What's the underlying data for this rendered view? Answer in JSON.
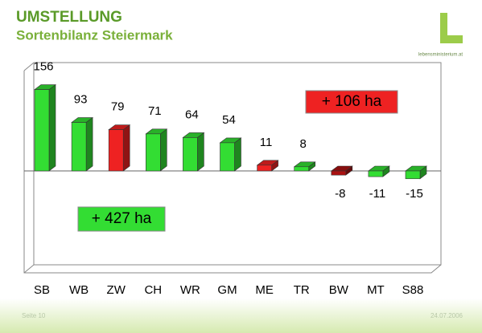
{
  "header": {
    "title": "UMSTELLUNG",
    "subtitle": "Sortenbilanz Steiermark",
    "logo_text": "lebensministerium.at"
  },
  "chart_data": {
    "type": "bar",
    "categories": [
      "SB",
      "WB",
      "ZW",
      "CH",
      "WR",
      "GM",
      "ME",
      "TR",
      "BW",
      "MT",
      "S88"
    ],
    "values": [
      156,
      93,
      79,
      71,
      64,
      54,
      11,
      8,
      -8,
      -11,
      -15
    ],
    "colors": [
      "#33dd33",
      "#33dd33",
      "#ee2222",
      "#33dd33",
      "#33dd33",
      "#33dd33",
      "#ee2222",
      "#33dd33",
      "#aa1111",
      "#33dd33",
      "#33dd33"
    ],
    "annotations": [
      "+ 106 ha",
      "+ 427 ha"
    ]
  },
  "footer": {
    "page": "Seite 10",
    "date": "24.07.2006"
  }
}
